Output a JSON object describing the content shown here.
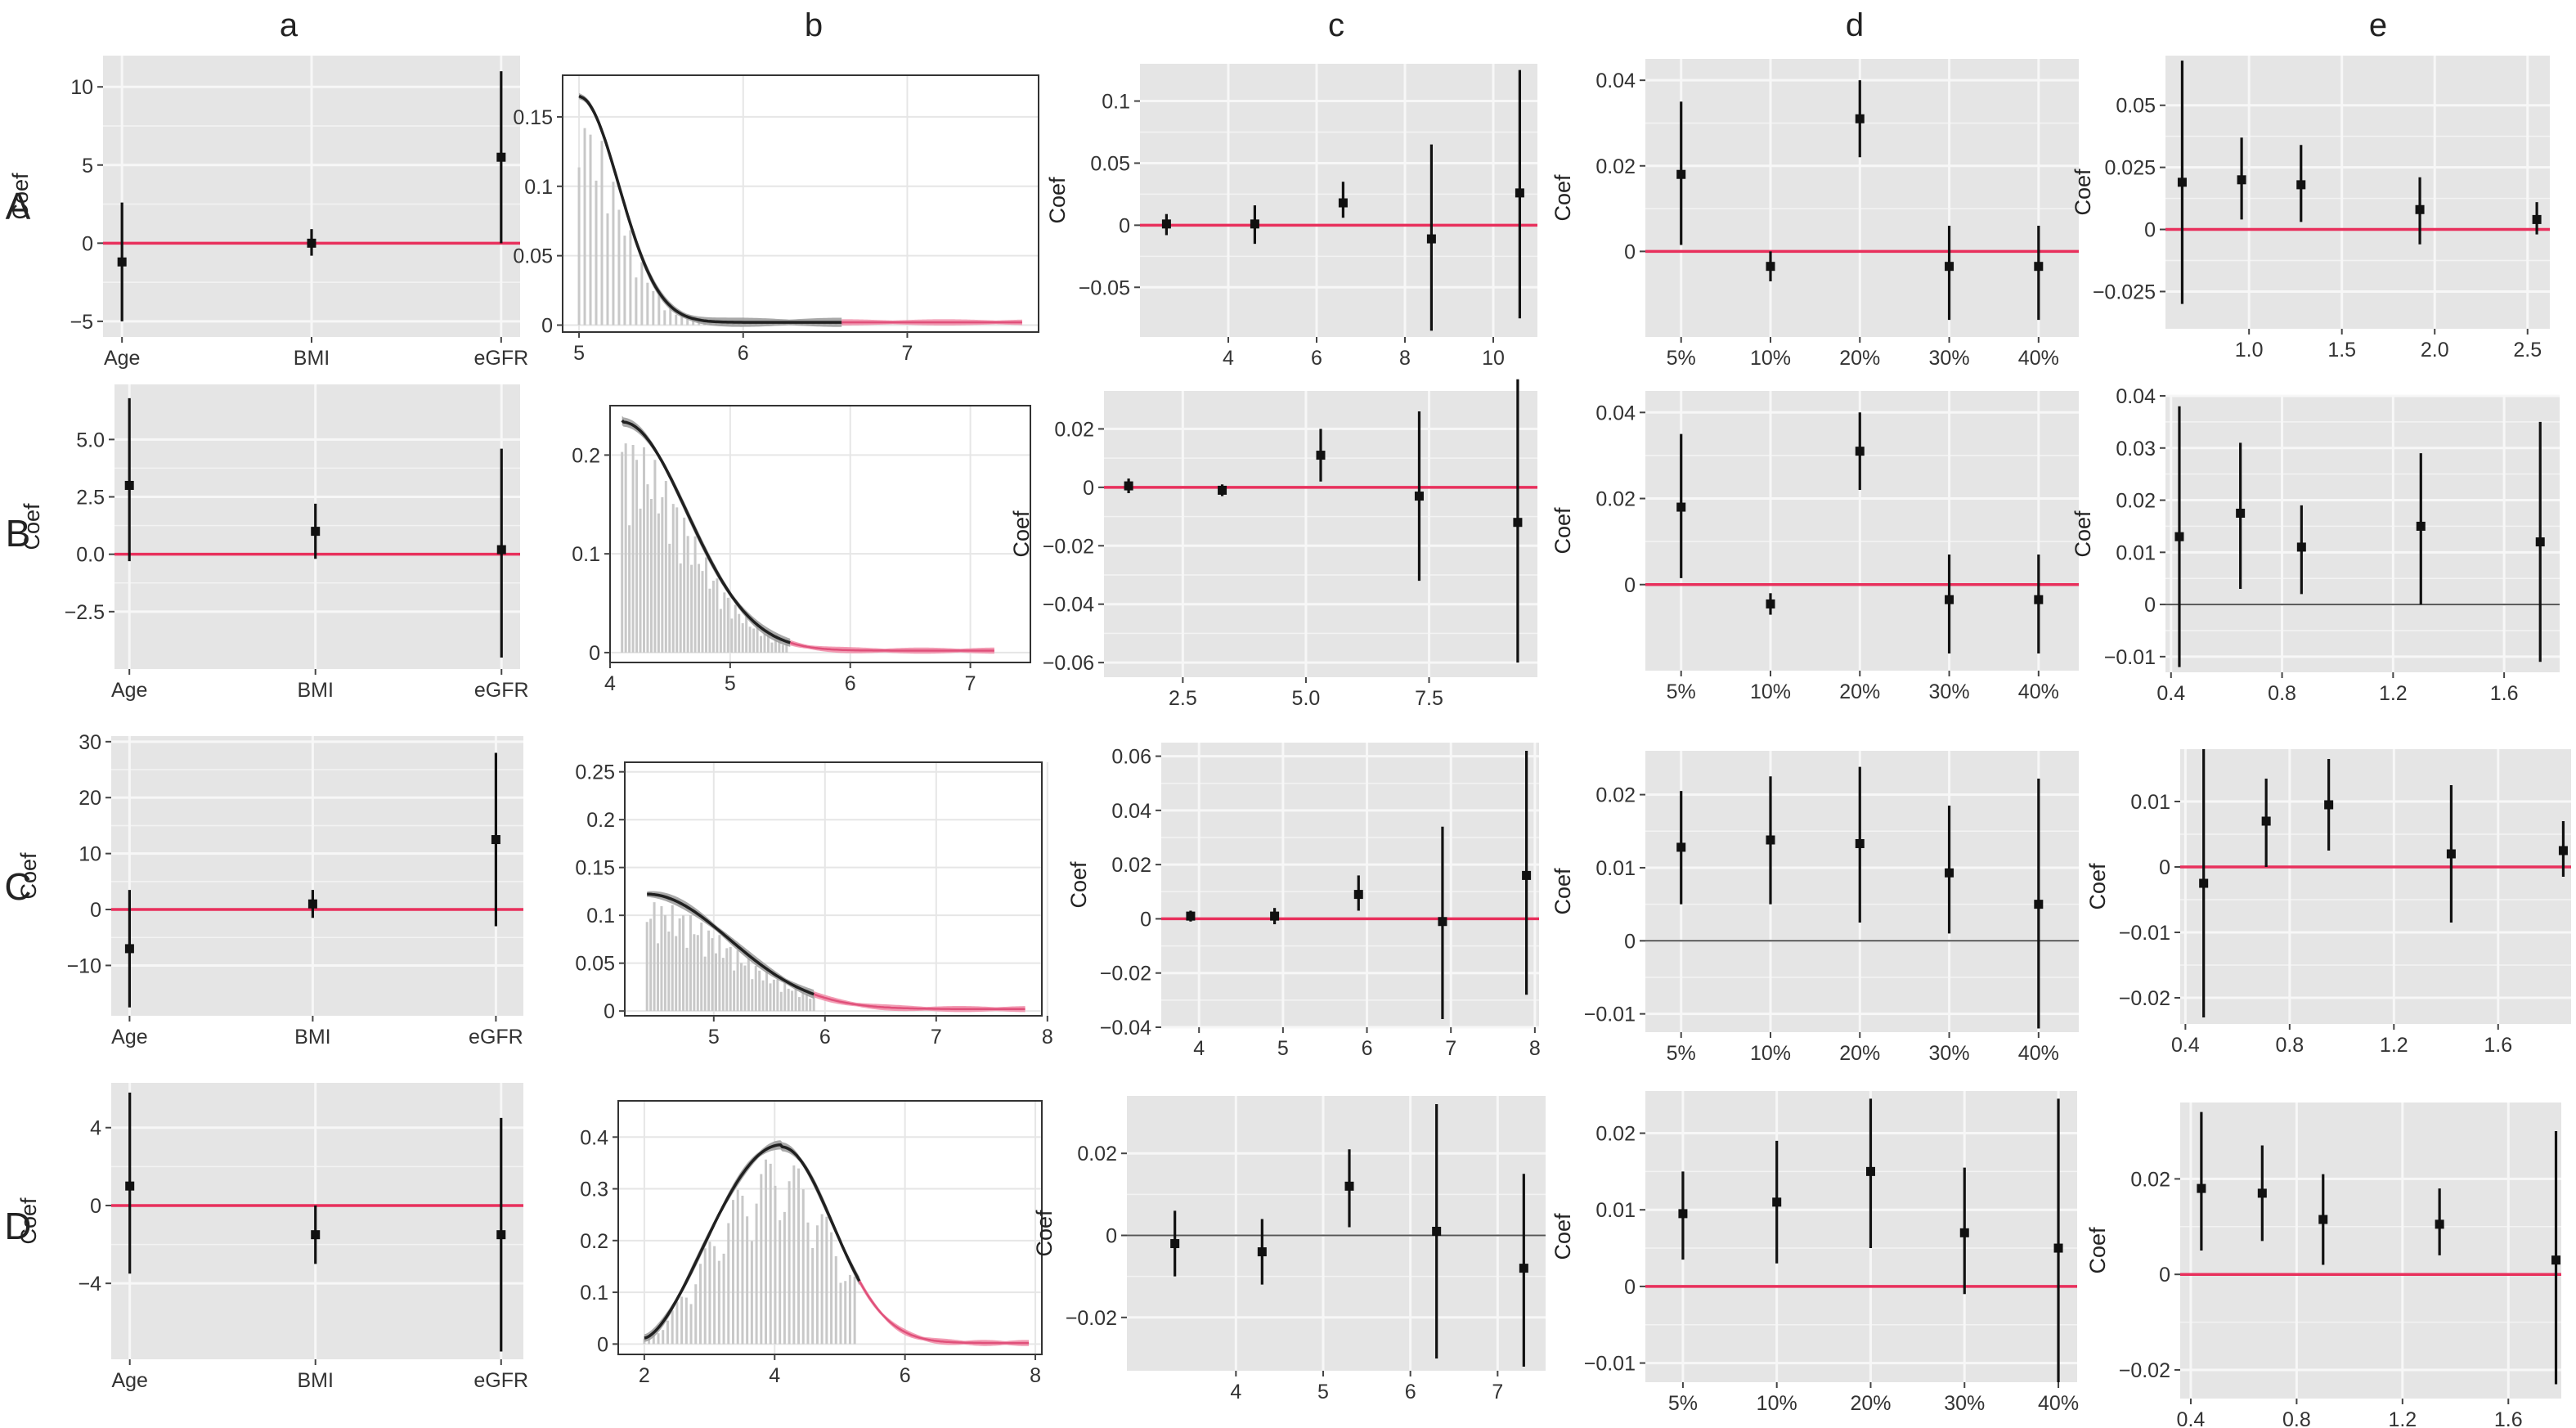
{
  "column_labels": [
    "a",
    "b",
    "c",
    "d",
    "e"
  ],
  "row_labels": [
    "A",
    "B",
    "C",
    "D"
  ],
  "colors": {
    "panel_bg": "#e5e5e5",
    "grid": "#f7f7f7",
    "ref_red": "#e8305c",
    "ref_grey": "#555555",
    "point": "#111111",
    "curve_dark": "#202020",
    "band_grey": "#9a9a9a",
    "band_pink": "#f08aa6"
  },
  "chart_data": [
    {
      "row": "A",
      "col": "a",
      "type": "scatter",
      "ylabel": "Coef",
      "categories": [
        "Age",
        "BMI",
        "eGFR"
      ],
      "x": [
        1,
        2,
        3
      ],
      "xlim": [
        0.9,
        3.1
      ],
      "ylim": [
        -6,
        12
      ],
      "yticks": [
        -5,
        0,
        5,
        10
      ],
      "ref": {
        "y": 0,
        "color": "red"
      },
      "points": [
        {
          "x": 1,
          "y": -1.2,
          "lo": -5,
          "hi": 2.6
        },
        {
          "x": 2,
          "y": 0,
          "lo": -0.8,
          "hi": 0.9
        },
        {
          "x": 3,
          "y": 5.5,
          "lo": 0,
          "hi": 11
        }
      ]
    },
    {
      "row": "A",
      "col": "b",
      "type": "line",
      "xlim": [
        4.9,
        7.8
      ],
      "ylim": [
        -0.005,
        0.18
      ],
      "xticks": [
        5,
        6,
        7
      ],
      "yticks": [
        0,
        0.05,
        0.1,
        0.15
      ],
      "split": 6.6,
      "density": {
        "start": 5.0,
        "peak": 5.0,
        "max": 0.165,
        "decay": 0.18,
        "end": 7.7
      }
    },
    {
      "row": "A",
      "col": "c",
      "type": "scatter",
      "ylabel": "Coef",
      "xlim": [
        2,
        11
      ],
      "ylim": [
        -0.09,
        0.13
      ],
      "xticks": [
        4,
        6,
        8,
        10
      ],
      "yticks": [
        -0.05,
        0,
        0.05,
        0.1
      ],
      "ref": {
        "y": 0,
        "color": "red"
      },
      "points": [
        {
          "x": 2.6,
          "y": 0.001,
          "lo": -0.008,
          "hi": 0.009
        },
        {
          "x": 4.6,
          "y": 0.001,
          "lo": -0.015,
          "hi": 0.016
        },
        {
          "x": 6.6,
          "y": 0.018,
          "lo": 0.006,
          "hi": 0.035
        },
        {
          "x": 8.6,
          "y": -0.011,
          "lo": -0.085,
          "hi": 0.065
        },
        {
          "x": 10.6,
          "y": 0.026,
          "lo": -0.075,
          "hi": 0.125
        }
      ]
    },
    {
      "row": "A",
      "col": "d",
      "type": "scatter",
      "ylabel": "Coef",
      "categories": [
        "5%",
        "10%",
        "20%",
        "30%",
        "40%"
      ],
      "x": [
        1,
        2,
        3,
        4,
        5
      ],
      "xlim": [
        0.6,
        5.45
      ],
      "ylim": [
        -0.02,
        0.045
      ],
      "yticks": [
        0,
        0.02,
        0.04
      ],
      "ref": {
        "y": 0,
        "color": "red"
      },
      "points": [
        {
          "x": 1,
          "y": 0.018,
          "lo": 0.0015,
          "hi": 0.035
        },
        {
          "x": 2,
          "y": -0.0035,
          "lo": -0.007,
          "hi": 0
        },
        {
          "x": 3,
          "y": 0.031,
          "lo": 0.022,
          "hi": 0.04
        },
        {
          "x": 4,
          "y": -0.0035,
          "lo": -0.016,
          "hi": 0.006
        },
        {
          "x": 5,
          "y": -0.0035,
          "lo": -0.016,
          "hi": 0.006
        }
      ]
    },
    {
      "row": "A",
      "col": "e",
      "type": "scatter",
      "ylabel": "Coef",
      "xlim": [
        0.55,
        2.62
      ],
      "ylim": [
        -0.04,
        0.07
      ],
      "xticks": [
        1.0,
        1.5,
        2.0,
        2.5
      ],
      "yticks": [
        -0.025,
        0,
        0.025,
        0.05
      ],
      "ref": {
        "y": 0,
        "color": "red"
      },
      "points": [
        {
          "x": 0.64,
          "y": 0.019,
          "lo": -0.03,
          "hi": 0.068
        },
        {
          "x": 0.96,
          "y": 0.02,
          "lo": 0.004,
          "hi": 0.037
        },
        {
          "x": 1.28,
          "y": 0.018,
          "lo": 0.003,
          "hi": 0.034
        },
        {
          "x": 1.92,
          "y": 0.008,
          "lo": -0.006,
          "hi": 0.021
        },
        {
          "x": 2.55,
          "y": 0.004,
          "lo": -0.002,
          "hi": 0.011
        }
      ]
    },
    {
      "row": "B",
      "col": "a",
      "type": "scatter",
      "ylabel": "Coef",
      "categories": [
        "Age",
        "BMI",
        "eGFR"
      ],
      "x": [
        1,
        2,
        3
      ],
      "xlim": [
        0.92,
        3.1
      ],
      "ylim": [
        -5,
        7.4
      ],
      "yticks": [
        -2.5,
        0,
        2.5,
        5.0
      ],
      "ref": {
        "y": 0,
        "color": "red"
      },
      "points": [
        {
          "x": 1,
          "y": 3,
          "lo": -0.3,
          "hi": 6.8
        },
        {
          "x": 2,
          "y": 1,
          "lo": -0.2,
          "hi": 2.2
        },
        {
          "x": 3,
          "y": 0.2,
          "lo": -4.5,
          "hi": 4.6
        }
      ]
    },
    {
      "row": "B",
      "col": "b",
      "type": "line",
      "xlim": [
        4.0,
        7.5
      ],
      "ylim": [
        -0.01,
        0.25
      ],
      "xticks": [
        4,
        5,
        6,
        7
      ],
      "yticks": [
        0,
        0.1,
        0.2
      ],
      "split": 5.5,
      "density": {
        "start": 4.1,
        "peak": 4.1,
        "max": 0.235,
        "decay": 0.4,
        "end": 7.2
      }
    },
    {
      "row": "B",
      "col": "c",
      "type": "scatter",
      "ylabel": "Coef",
      "xlim": [
        0.9,
        9.7
      ],
      "ylim": [
        -0.065,
        0.033
      ],
      "xticks": [
        2.5,
        5.0,
        7.5
      ],
      "yticks": [
        -0.06,
        -0.04,
        -0.02,
        0,
        0.02
      ],
      "ref": {
        "y": 0,
        "color": "red"
      },
      "points": [
        {
          "x": 1.4,
          "y": 0.0005,
          "lo": -0.002,
          "hi": 0.003
        },
        {
          "x": 3.3,
          "y": -0.001,
          "lo": -0.003,
          "hi": 0.001
        },
        {
          "x": 5.3,
          "y": 0.011,
          "lo": 0.002,
          "hi": 0.02
        },
        {
          "x": 7.3,
          "y": -0.003,
          "lo": -0.032,
          "hi": 0.026
        },
        {
          "x": 9.3,
          "y": -0.012,
          "lo": -0.06,
          "hi": 0.037
        }
      ]
    },
    {
      "row": "B",
      "col": "d",
      "type": "scatter",
      "ylabel": "Coef",
      "categories": [
        "5%",
        "10%",
        "20%",
        "30%",
        "40%"
      ],
      "x": [
        1,
        2,
        3,
        4,
        5
      ],
      "xlim": [
        0.6,
        5.45
      ],
      "ylim": [
        -0.02,
        0.045
      ],
      "yticks": [
        0,
        0.02,
        0.04
      ],
      "ref": {
        "y": 0,
        "color": "red"
      },
      "points": [
        {
          "x": 1,
          "y": 0.018,
          "lo": 0.0015,
          "hi": 0.035
        },
        {
          "x": 2,
          "y": -0.0045,
          "lo": -0.007,
          "hi": -0.002
        },
        {
          "x": 3,
          "y": 0.031,
          "lo": 0.022,
          "hi": 0.04
        },
        {
          "x": 4,
          "y": -0.0035,
          "lo": -0.016,
          "hi": 0.007
        },
        {
          "x": 5,
          "y": -0.0035,
          "lo": -0.016,
          "hi": 0.007
        }
      ]
    },
    {
      "row": "B",
      "col": "e",
      "type": "scatter",
      "ylabel": "Coef",
      "xlim": [
        0.38,
        1.8
      ],
      "ylim": [
        -0.013,
        0.04
      ],
      "xticks": [
        0.4,
        0.8,
        1.2,
        1.6
      ],
      "yticks": [
        -0.01,
        0,
        0.01,
        0.02,
        0.03,
        0.04
      ],
      "ref": {
        "y": 0,
        "color": "grey"
      },
      "points": [
        {
          "x": 0.43,
          "y": 0.013,
          "lo": -0.012,
          "hi": 0.038
        },
        {
          "x": 0.65,
          "y": 0.0175,
          "lo": 0.003,
          "hi": 0.031
        },
        {
          "x": 0.87,
          "y": 0.011,
          "lo": 0.002,
          "hi": 0.019
        },
        {
          "x": 1.3,
          "y": 0.015,
          "lo": 0,
          "hi": 0.029
        },
        {
          "x": 1.73,
          "y": 0.012,
          "lo": -0.011,
          "hi": 0.035
        }
      ]
    },
    {
      "row": "C",
      "col": "a",
      "type": "scatter",
      "ylabel": "Coef",
      "categories": [
        "Age",
        "BMI",
        "eGFR"
      ],
      "x": [
        1,
        2,
        3
      ],
      "xlim": [
        0.9,
        3.15
      ],
      "ylim": [
        -19,
        31
      ],
      "yticks": [
        -10,
        0,
        10,
        20,
        30
      ],
      "ref": {
        "y": 0,
        "color": "red"
      },
      "points": [
        {
          "x": 1,
          "y": -7,
          "lo": -17.5,
          "hi": 3.5
        },
        {
          "x": 2,
          "y": 1,
          "lo": -1.5,
          "hi": 3.5
        },
        {
          "x": 3,
          "y": 12.5,
          "lo": -3,
          "hi": 28
        }
      ]
    },
    {
      "row": "C",
      "col": "b",
      "type": "line",
      "xlim": [
        4.2,
        7.95
      ],
      "ylim": [
        -0.005,
        0.26
      ],
      "xticks": [
        5,
        6,
        7,
        8
      ],
      "yticks": [
        0,
        0.05,
        0.1,
        0.15,
        0.2,
        0.25
      ],
      "split": 5.9,
      "density": {
        "start": 4.4,
        "peak": 4.4,
        "max": 0.122,
        "decay": 0.55,
        "end": 7.8
      }
    },
    {
      "row": "C",
      "col": "c",
      "type": "scatter",
      "ylabel": "Coef",
      "xlim": [
        3.55,
        8.05
      ],
      "ylim": [
        -0.04,
        0.065
      ],
      "xticks": [
        4,
        5,
        6,
        7,
        8
      ],
      "yticks": [
        -0.04,
        -0.02,
        0,
        0.02,
        0.04,
        0.06
      ],
      "ref": {
        "y": 0,
        "color": "red"
      },
      "points": [
        {
          "x": 3.9,
          "y": 0.001,
          "lo": -0.001,
          "hi": 0.003
        },
        {
          "x": 4.9,
          "y": 0.001,
          "lo": -0.002,
          "hi": 0.004
        },
        {
          "x": 5.9,
          "y": 0.009,
          "lo": 0.003,
          "hi": 0.016
        },
        {
          "x": 6.9,
          "y": -0.001,
          "lo": -0.037,
          "hi": 0.034
        },
        {
          "x": 7.9,
          "y": 0.016,
          "lo": -0.028,
          "hi": 0.062
        }
      ]
    },
    {
      "row": "C",
      "col": "d",
      "type": "scatter",
      "ylabel": "Coef",
      "categories": [
        "5%",
        "10%",
        "20%",
        "30%",
        "40%"
      ],
      "x": [
        1,
        2,
        3,
        4,
        5
      ],
      "xlim": [
        0.6,
        5.45
      ],
      "ylim": [
        -0.0125,
        0.026
      ],
      "yticks": [
        -0.01,
        0,
        0.01,
        0.02
      ],
      "ref": {
        "y": 0,
        "color": "grey"
      },
      "points": [
        {
          "x": 1,
          "y": 0.0128,
          "lo": 0.005,
          "hi": 0.0205
        },
        {
          "x": 2,
          "y": 0.0138,
          "lo": 0.005,
          "hi": 0.0225
        },
        {
          "x": 3,
          "y": 0.0133,
          "lo": 0.0025,
          "hi": 0.0238
        },
        {
          "x": 4,
          "y": 0.0093,
          "lo": 0.001,
          "hi": 0.0185
        },
        {
          "x": 5,
          "y": 0.005,
          "lo": -0.012,
          "hi": 0.0222
        }
      ]
    },
    {
      "row": "C",
      "col": "e",
      "type": "scatter",
      "ylabel": "Coef",
      "xlim": [
        0.38,
        1.88
      ],
      "ylim": [
        -0.024,
        0.018
      ],
      "xticks": [
        0.4,
        0.8,
        1.2,
        1.6
      ],
      "yticks": [
        -0.02,
        -0.01,
        0,
        0.01
      ],
      "ref": {
        "y": 0,
        "color": "red"
      },
      "points": [
        {
          "x": 0.47,
          "y": -0.0025,
          "lo": -0.023,
          "hi": 0.018
        },
        {
          "x": 0.71,
          "y": 0.007,
          "lo": 0.0,
          "hi": 0.0135
        },
        {
          "x": 0.95,
          "y": 0.0095,
          "lo": 0.0025,
          "hi": 0.0165
        },
        {
          "x": 1.42,
          "y": 0.002,
          "lo": -0.0085,
          "hi": 0.0125
        },
        {
          "x": 1.85,
          "y": 0.0025,
          "lo": -0.0015,
          "hi": 0.007
        }
      ]
    },
    {
      "row": "D",
      "col": "a",
      "type": "scatter",
      "ylabel": "Coef",
      "categories": [
        "Age",
        "BMI",
        "eGFR"
      ],
      "x": [
        1,
        2,
        3
      ],
      "xlim": [
        0.9,
        3.12
      ],
      "ylim": [
        -7.9,
        6.3
      ],
      "yticks": [
        -4,
        0,
        4
      ],
      "ref": {
        "y": 0,
        "color": "red"
      },
      "points": [
        {
          "x": 1,
          "y": 1,
          "lo": -3.5,
          "hi": 5.8
        },
        {
          "x": 2,
          "y": -1.5,
          "lo": -3,
          "hi": 0
        },
        {
          "x": 3,
          "y": -1.5,
          "lo": -7.5,
          "hi": 4.5
        }
      ]
    },
    {
      "row": "D",
      "col": "b",
      "type": "line",
      "xlim": [
        1.6,
        8.1
      ],
      "ylim": [
        -0.02,
        0.47
      ],
      "xticks": [
        2,
        4,
        6,
        8
      ],
      "yticks": [
        0,
        0.1,
        0.2,
        0.3,
        0.4
      ],
      "split": 5.3,
      "density": {
        "start": 2.0,
        "peak": 4.1,
        "max": 0.385,
        "decay": 1.0,
        "end": 7.9
      }
    },
    {
      "row": "D",
      "col": "c",
      "type": "scatter",
      "ylabel": "Coef",
      "xlim": [
        2.75,
        7.55
      ],
      "ylim": [
        -0.033,
        0.034
      ],
      "xticks": [
        4,
        5,
        6,
        7
      ],
      "yticks": [
        -0.02,
        0,
        0.02
      ],
      "ref": {
        "y": 0,
        "color": "grey"
      },
      "points": [
        {
          "x": 3.3,
          "y": -0.002,
          "lo": -0.01,
          "hi": 0.006
        },
        {
          "x": 4.3,
          "y": -0.004,
          "lo": -0.012,
          "hi": 0.004
        },
        {
          "x": 5.3,
          "y": 0.012,
          "lo": 0.002,
          "hi": 0.021
        },
        {
          "x": 6.3,
          "y": 0.001,
          "lo": -0.03,
          "hi": 0.032
        },
        {
          "x": 7.3,
          "y": -0.008,
          "lo": -0.032,
          "hi": 0.015
        }
      ]
    },
    {
      "row": "D",
      "col": "d",
      "type": "scatter",
      "ylabel": "Coef",
      "categories": [
        "5%",
        "10%",
        "20%",
        "30%",
        "40%"
      ],
      "x": [
        1,
        2,
        3,
        4,
        5
      ],
      "xlim": [
        0.6,
        5.2
      ],
      "ylim": [
        -0.0125,
        0.0255
      ],
      "yticks": [
        -0.01,
        0,
        0.01,
        0.02
      ],
      "ref": {
        "y": 0,
        "color": "red"
      },
      "points": [
        {
          "x": 1,
          "y": 0.0095,
          "lo": 0.0035,
          "hi": 0.015
        },
        {
          "x": 2,
          "y": 0.011,
          "lo": 0.003,
          "hi": 0.019
        },
        {
          "x": 3,
          "y": 0.015,
          "lo": 0.005,
          "hi": 0.0245
        },
        {
          "x": 4,
          "y": 0.007,
          "lo": -0.001,
          "hi": 0.0155
        },
        {
          "x": 5,
          "y": 0.005,
          "lo": -0.0125,
          "hi": 0.0245
        }
      ]
    },
    {
      "row": "D",
      "col": "e",
      "type": "scatter",
      "ylabel": "Coef",
      "xlim": [
        0.36,
        1.8
      ],
      "ylim": [
        -0.026,
        0.036
      ],
      "xticks": [
        0.4,
        0.8,
        1.2,
        1.6
      ],
      "yticks": [
        -0.02,
        0,
        0.02
      ],
      "ref": {
        "y": 0,
        "color": "red"
      },
      "points": [
        {
          "x": 0.44,
          "y": 0.018,
          "lo": 0.005,
          "hi": 0.034
        },
        {
          "x": 0.67,
          "y": 0.017,
          "lo": 0.007,
          "hi": 0.027
        },
        {
          "x": 0.9,
          "y": 0.0115,
          "lo": 0.002,
          "hi": 0.021
        },
        {
          "x": 1.34,
          "y": 0.0105,
          "lo": 0.004,
          "hi": 0.018
        },
        {
          "x": 1.78,
          "y": 0.003,
          "lo": -0.023,
          "hi": 0.03
        }
      ]
    }
  ]
}
